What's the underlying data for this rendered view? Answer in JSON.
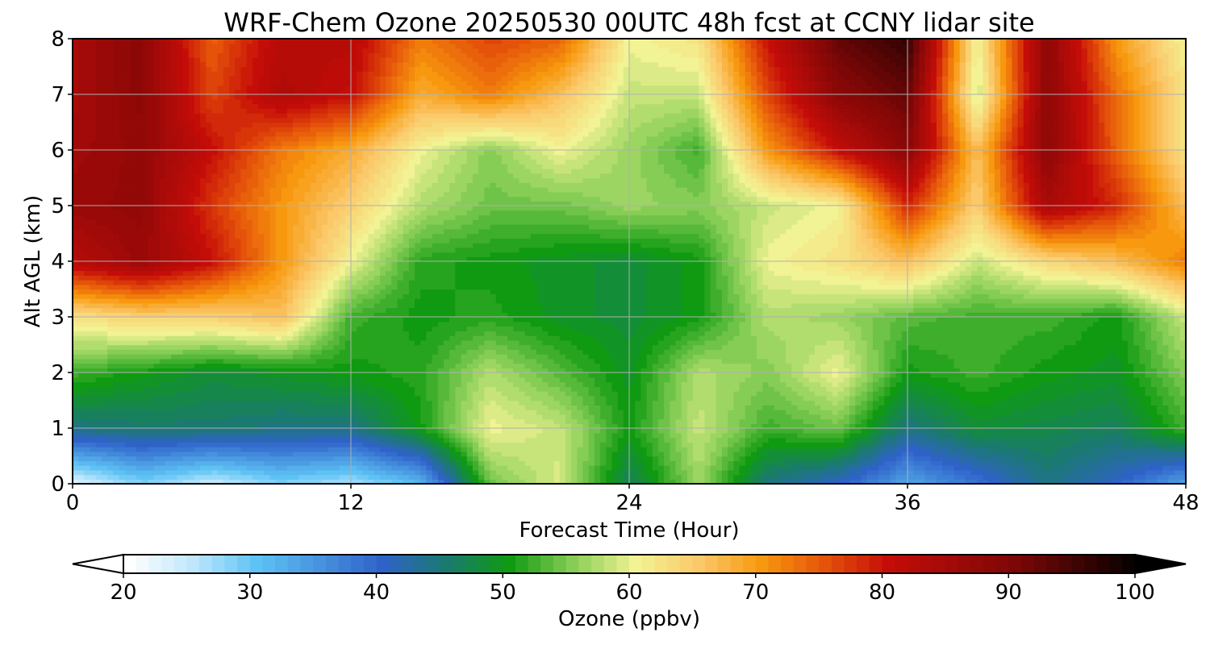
{
  "chart_data": {
    "type": "heatmap",
    "title": "WRF-Chem Ozone  20250530 00UTC 48h fcst at CCNY lidar site",
    "xlabel": "Forecast Time (Hour)",
    "ylabel": "Alt AGL (km)",
    "xlim": [
      0,
      48
    ],
    "ylim": [
      0,
      8
    ],
    "x_ticks": [
      "0",
      "12",
      "24",
      "36",
      "48"
    ],
    "y_ticks": [
      "0",
      "1",
      "2",
      "3",
      "4",
      "5",
      "6",
      "7",
      "8"
    ],
    "grid": true,
    "x": [
      0,
      3,
      6,
      9,
      12,
      15,
      18,
      21,
      24,
      27,
      30,
      33,
      36,
      39,
      42,
      45,
      48
    ],
    "y": [
      0,
      1,
      2,
      3,
      4,
      5,
      6,
      7,
      8
    ],
    "values": [
      [
        22,
        28,
        24,
        28,
        26,
        31,
        54,
        59,
        46,
        56,
        44,
        40,
        33,
        38,
        44,
        40,
        33
      ],
      [
        44,
        45,
        45,
        44,
        44,
        50,
        60,
        58,
        50,
        58,
        52,
        54,
        44,
        48,
        47,
        46,
        52
      ],
      [
        52,
        50,
        48,
        49,
        50,
        51,
        57,
        53,
        49,
        57,
        55,
        60,
        50,
        52,
        50,
        49,
        55
      ],
      [
        62,
        64,
        64,
        66,
        52,
        50,
        51,
        49,
        48,
        50,
        57,
        56,
        53,
        52,
        52,
        50,
        58
      ],
      [
        82,
        86,
        80,
        70,
        60,
        51,
        50,
        49,
        48,
        50,
        60,
        62,
        66,
        58,
        63,
        66,
        72
      ],
      [
        86,
        87,
        77,
        70,
        64,
        57,
        54,
        54,
        56,
        55,
        58,
        60,
        78,
        64,
        84,
        78,
        66
      ],
      [
        85,
        87,
        80,
        72,
        68,
        60,
        55,
        60,
        56,
        52,
        70,
        80,
        88,
        66,
        88,
        74,
        62
      ],
      [
        84,
        88,
        76,
        83,
        80,
        68,
        72,
        66,
        58,
        58,
        76,
        88,
        92,
        58,
        88,
        73,
        62
      ],
      [
        84,
        88,
        74,
        82,
        82,
        72,
        76,
        74,
        60,
        62,
        80,
        92,
        96,
        60,
        88,
        70,
        60
      ]
    ],
    "colorbar": {
      "label": "Ozone  (ppbv)",
      "min": 20,
      "max": 100,
      "step": 1,
      "ticks": [
        "20",
        "30",
        "40",
        "50",
        "60",
        "70",
        "80",
        "90",
        "100"
      ],
      "extend": "both",
      "colors": [
        [
          20,
          "#ffffff"
        ],
        [
          25,
          "#bfe6fb"
        ],
        [
          30,
          "#5ec3f4"
        ],
        [
          40,
          "#2f62c9"
        ],
        [
          45,
          "#1b7a70"
        ],
        [
          50,
          "#0f9a12"
        ],
        [
          55,
          "#86cd55"
        ],
        [
          60,
          "#f2f394"
        ],
        [
          65,
          "#fbc96a"
        ],
        [
          70,
          "#f7980e"
        ],
        [
          75,
          "#e5520a"
        ],
        [
          80,
          "#c40d08"
        ],
        [
          90,
          "#7d0707"
        ],
        [
          95,
          "#3e0404"
        ],
        [
          100,
          "#000000"
        ]
      ]
    }
  }
}
